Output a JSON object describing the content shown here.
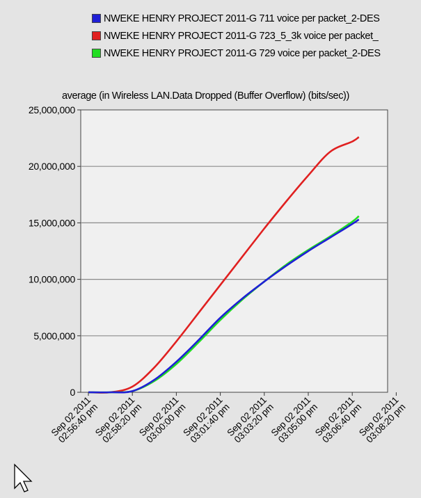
{
  "chart_data": {
    "type": "line",
    "title": "average (in Wireless LAN.Data Dropped (Buffer Overflow) (bits/sec))",
    "legend_position": "top",
    "grid": true,
    "ylim": [
      0,
      25000000
    ],
    "y_ticks": [
      "0",
      "5,000,000",
      "10,000,000",
      "15,000,000",
      "20,000,000",
      "25,000,000"
    ],
    "y_tick_values": [
      0,
      5000000,
      10000000,
      15000000,
      20000000,
      25000000
    ],
    "x_ticks": [
      {
        "date": "Sep 02 2011",
        "time": "02:56:40 pm"
      },
      {
        "date": "Sep 02 2011",
        "time": "02:58:20 pm"
      },
      {
        "date": "Sep 02 2011",
        "time": "03:00:00 pm"
      },
      {
        "date": "Sep 02 2011",
        "time": "03:01:40 pm"
      },
      {
        "date": "Sep 02 2011",
        "time": "03:03:20 pm"
      },
      {
        "date": "Sep 02 2011",
        "time": "03:05:00 pm"
      },
      {
        "date": "Sep 02 2011",
        "time": "03:06:40 pm"
      },
      {
        "date": "Sep 02 2011",
        "time": "03:08:20 pm"
      }
    ],
    "x": [
      "02:56:40 pm",
      "02:57:30 pm",
      "02:58:20 pm",
      "02:59:10 pm",
      "03:00:00 pm",
      "03:00:50 pm",
      "03:01:40 pm",
      "03:02:30 pm",
      "03:03:20 pm",
      "03:04:10 pm",
      "03:05:00 pm",
      "03:05:50 pm",
      "03:06:40 pm",
      "03:06:55 pm"
    ],
    "series": [
      {
        "name": "NWEKE HENRY PROJECT 2011-G 711 voice per packet_2-DES",
        "color": "#1f1fd6",
        "values": [
          0,
          0,
          100000,
          1100000,
          2700000,
          4600000,
          6600000,
          8300000,
          9800000,
          11200000,
          12500000,
          13700000,
          14900000,
          15300000
        ]
      },
      {
        "name": "NWEKE HENRY PROJECT 2011-G 723_5_3k voice per packet_",
        "color": "#e02020",
        "values": [
          0,
          0,
          500000,
          2200000,
          4500000,
          7000000,
          9500000,
          12000000,
          14500000,
          16900000,
          19200000,
          21300000,
          22200000,
          22600000
        ]
      },
      {
        "name": "NWEKE HENRY PROJECT 2011-G 729 voice per packet_2-DES",
        "color": "#22dd22",
        "values": [
          0,
          0,
          100000,
          1000000,
          2500000,
          4400000,
          6400000,
          8200000,
          9800000,
          11300000,
          12600000,
          13800000,
          15100000,
          15600000
        ]
      }
    ]
  }
}
